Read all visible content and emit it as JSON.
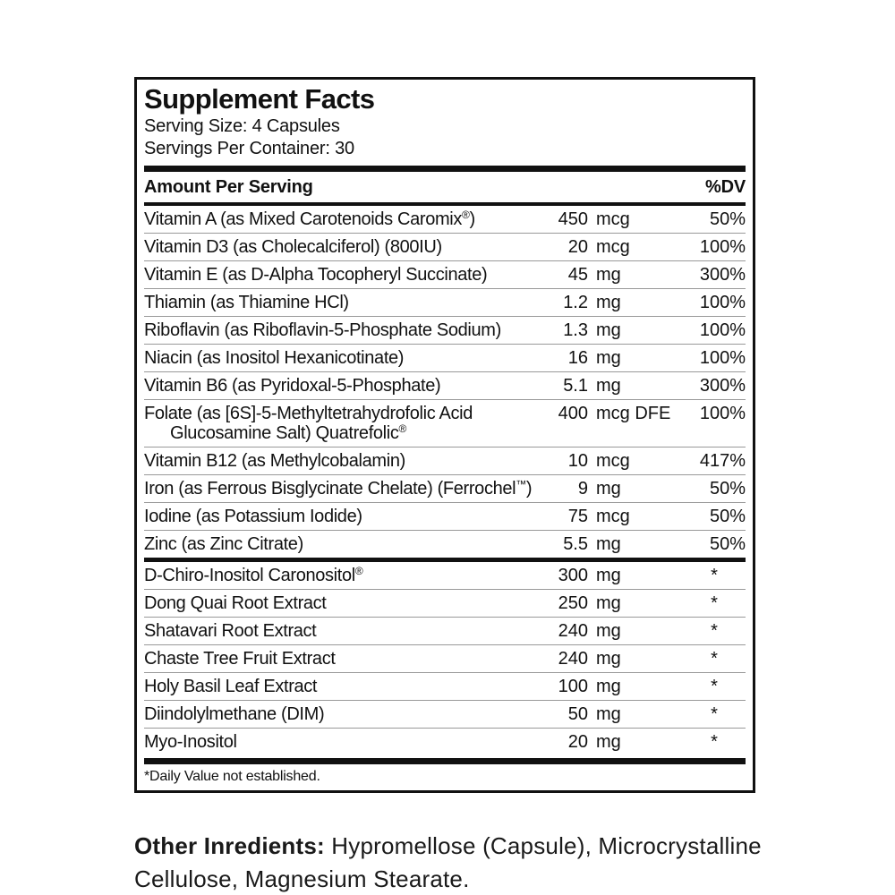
{
  "panel": {
    "title": "Supplement Facts",
    "serving_size": "Serving Size: 4 Capsules",
    "servings_per_container": "Servings Per Container: 30",
    "header_left": "Amount Per Serving",
    "header_right": "%DV",
    "footnote": "*Daily Value not established."
  },
  "nutrients": [
    {
      "name": "Vitamin A (as Mixed Carotenoids Caromix",
      "sup": "®",
      "name_end": ")",
      "amount": "450",
      "unit": "mcg",
      "dv": "50%"
    },
    {
      "name": "Vitamin D3 (as Cholecalciferol) (800IU)",
      "amount": "20",
      "unit": "mcg",
      "dv": "100%"
    },
    {
      "name": "Vitamin E (as D-Alpha Tocopheryl Succinate)",
      "amount": "45",
      "unit": "mg",
      "dv": "300%"
    },
    {
      "name": "Thiamin (as Thiamine HCl)",
      "amount": "1.2",
      "unit": "mg",
      "dv": "100%"
    },
    {
      "name": "Riboflavin (as Riboflavin-5-Phosphate Sodium)",
      "amount": "1.3",
      "unit": "mg",
      "dv": "100%"
    },
    {
      "name": "Niacin (as Inositol Hexanicotinate)",
      "amount": "16",
      "unit": "mg",
      "dv": "100%"
    },
    {
      "name": "Vitamin B6 (as Pyridoxal-5-Phosphate)",
      "amount": "5.1",
      "unit": "mg",
      "dv": "300%"
    },
    {
      "name": "Folate (as [6S]-5-Methyltetrahydrofolic Acid",
      "name2": "Glucosamine Salt) Quatrefolic",
      "sup2": "®",
      "amount": "400",
      "unit": "mcg DFE",
      "dv": "100%"
    },
    {
      "name": "Vitamin B12 (as Methylcobalamin)",
      "amount": "10",
      "unit": "mcg",
      "dv": "417%"
    },
    {
      "name": "Iron (as Ferrous Bisglycinate Chelate) (Ferrochel",
      "sup": "™",
      "name_end": ")",
      "amount": "9",
      "unit": "mg",
      "dv": "50%"
    },
    {
      "name": "Iodine (as Potassium Iodide)",
      "amount": "75",
      "unit": "mcg",
      "dv": "50%"
    },
    {
      "name": "Zinc (as Zinc Citrate)",
      "amount": "5.5",
      "unit": "mg",
      "dv": "50%"
    }
  ],
  "botanicals": [
    {
      "name": "D-Chiro-Inositol Caronositol",
      "sup": "®",
      "amount": "300",
      "unit": "mg",
      "dv": "*"
    },
    {
      "name": "Dong Quai Root Extract",
      "amount": "250",
      "unit": "mg",
      "dv": "*"
    },
    {
      "name": "Shatavari Root Extract",
      "amount": "240",
      "unit": "mg",
      "dv": "*"
    },
    {
      "name": "Chaste Tree Fruit Extract",
      "amount": "240",
      "unit": "mg",
      "dv": "*"
    },
    {
      "name": "Holy Basil Leaf Extract",
      "amount": "100",
      "unit": "mg",
      "dv": "*"
    },
    {
      "name": "Diindolylmethane (DIM)",
      "amount": "50",
      "unit": "mg",
      "dv": "*"
    },
    {
      "name": "Myo-Inositol",
      "amount": "20",
      "unit": "mg",
      "dv": "*"
    }
  ],
  "other_ingredients": {
    "label": "Other Inredients:",
    "text": " Hypromellose (Capsule), Microcrystalline Cellulose, Magnesium Stearate."
  },
  "colors": {
    "text": "#111111",
    "background": "#ffffff",
    "thick_bar": "#111111",
    "hairline": "#999999"
  }
}
